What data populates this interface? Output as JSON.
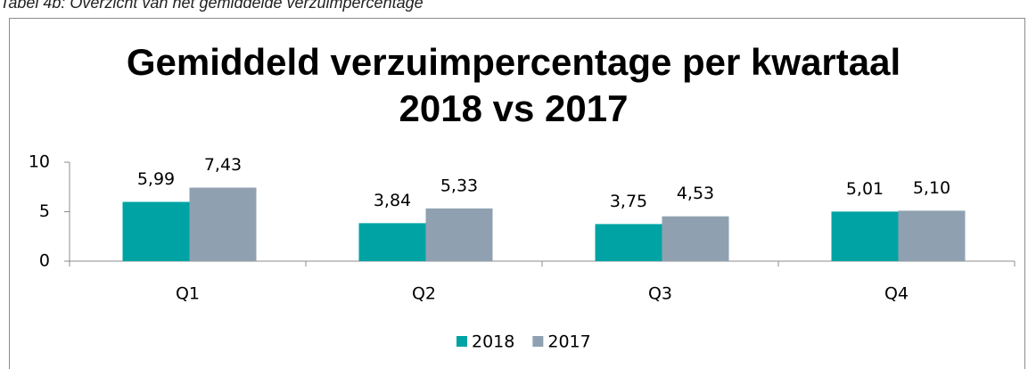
{
  "caption": "Tabel 4b: Overzicht van het gemiddelde verzuimpercentage",
  "chart_data": {
    "type": "bar",
    "title": [
      "Gemiddeld verzuimpercentage per kwartaal",
      "2018 vs 2017"
    ],
    "categories": [
      "Q1",
      "Q2",
      "Q3",
      "Q4"
    ],
    "series": [
      {
        "name": "2018",
        "color": "#00a3a3",
        "values": [
          5.99,
          3.84,
          3.75,
          5.01
        ],
        "value_labels": [
          "5,99",
          "3,84",
          "3,75",
          "5,01"
        ]
      },
      {
        "name": "2017",
        "color": "#8fa1b1",
        "values": [
          7.43,
          5.33,
          4.53,
          5.1
        ],
        "value_labels": [
          "7,43",
          "5,33",
          "4,53",
          "5,10"
        ]
      }
    ],
    "ylim": [
      0,
      10
    ],
    "yticks": [
      0,
      5,
      10
    ],
    "grid": false,
    "legend": "bottom"
  }
}
